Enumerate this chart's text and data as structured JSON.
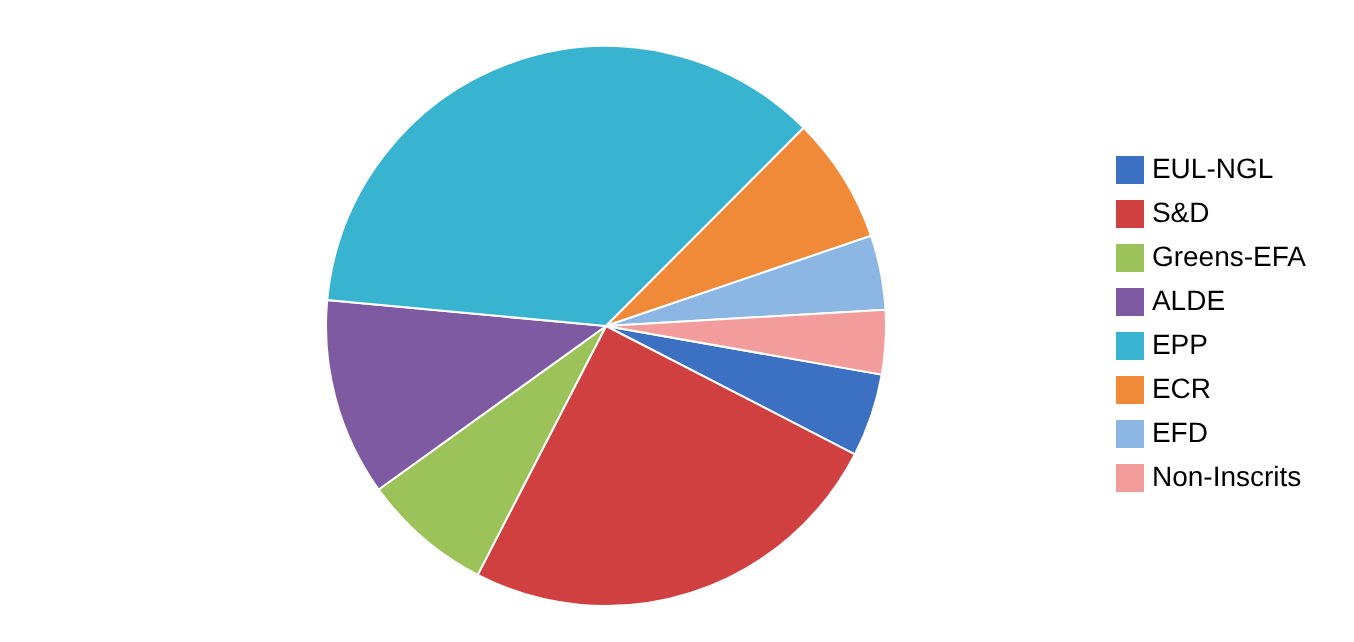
{
  "chart_data": {
    "type": "pie",
    "categories": [
      "EUL-NGL",
      "S&D",
      "Greens-EFA",
      "ALDE",
      "EPP",
      "ECR",
      "EFD",
      "Non-Inscrits"
    ],
    "values": [
      4.8,
      25.0,
      7.5,
      11.4,
      36.0,
      7.3,
      4.3,
      3.7
    ],
    "colors": [
      "#3b70c2",
      "#d04040",
      "#9bc35a",
      "#7e5aa2",
      "#38b4d0",
      "#f08a38",
      "#8cb6e4",
      "#f29c9c"
    ],
    "legend": "right"
  }
}
